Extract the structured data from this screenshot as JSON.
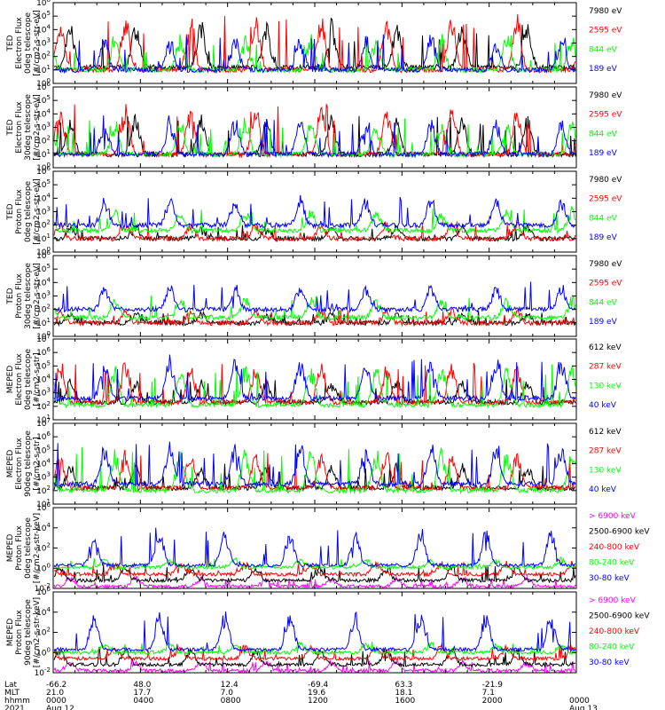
{
  "figure": {
    "colors": {
      "black": "#000000",
      "blue": "#0000ff",
      "green": "#00ff00",
      "red": "#ff0000",
      "magenta": "#ff00ff"
    }
  },
  "chart_data": [
    {
      "type": "line",
      "ylabel": [
        "TED",
        "Electron Flux",
        "0deg telescope",
        "[#/cm2-s-str-eV]"
      ],
      "ytick_labels": [
        "10^0",
        "10^1",
        "10^2",
        "10^3",
        "10^4",
        "10^5",
        "10^6"
      ],
      "ylim": [
        1,
        1000000
      ],
      "series": [
        {
          "name": "7980 eV",
          "color": "#000000",
          "baseline_exp": 1.2,
          "peak_exp": 4.7
        },
        {
          "name": "2595 eV",
          "color": "#ff0000",
          "baseline_exp": 1.0,
          "peak_exp": 5.2
        },
        {
          "name": "844 eV",
          "color": "#00ff00",
          "baseline_exp": 1.0,
          "peak_exp": 3.7
        },
        {
          "name": "189 eV",
          "color": "#0000ff",
          "baseline_exp": 1.0,
          "peak_exp": 3.6
        }
      ]
    },
    {
      "type": "line",
      "ylabel": [
        "TED",
        "Electron Flux",
        "30deg telescope",
        "[#/cm2-s-str-eV]"
      ],
      "ytick_labels": [
        "10^0",
        "10^1",
        "10^2",
        "10^3",
        "10^4",
        "10^5",
        "10^6"
      ],
      "ylim": [
        1,
        1000000
      ],
      "series": [
        {
          "name": "7980 eV",
          "color": "#000000",
          "baseline_exp": 1.0,
          "peak_exp": 3.9
        },
        {
          "name": "2595 eV",
          "color": "#ff0000",
          "baseline_exp": 1.0,
          "peak_exp": 4.9
        },
        {
          "name": "844 eV",
          "color": "#00ff00",
          "baseline_exp": 1.0,
          "peak_exp": 3.7
        },
        {
          "name": "189 eV",
          "color": "#0000ff",
          "baseline_exp": 1.0,
          "peak_exp": 3.8
        }
      ]
    },
    {
      "type": "line",
      "ylabel": [
        "TED",
        "Proton Flux",
        "0deg telescope",
        "[#/cm2-s-str-eV]"
      ],
      "ytick_labels": [
        "10^0",
        "10^1",
        "10^2",
        "10^3",
        "10^4",
        "10^5",
        "10^6"
      ],
      "ylim": [
        1,
        1000000
      ],
      "series": [
        {
          "name": "7980 eV",
          "color": "#000000",
          "baseline_exp": 1.0,
          "peak_exp": 2.0
        },
        {
          "name": "2595 eV",
          "color": "#ff0000",
          "baseline_exp": 1.0,
          "peak_exp": 2.2
        },
        {
          "name": "844 eV",
          "color": "#00ff00",
          "baseline_exp": 1.6,
          "peak_exp": 3.2
        },
        {
          "name": "189 eV",
          "color": "#0000ff",
          "baseline_exp": 2.0,
          "peak_exp": 4.1
        }
      ]
    },
    {
      "type": "line",
      "ylabel": [
        "TED",
        "Proton Flux",
        "30deg telescope",
        "[#/cm2-s-str-eV]"
      ],
      "ytick_labels": [
        "10^0",
        "10^1",
        "10^2",
        "10^3",
        "10^4",
        "10^5",
        "10^6"
      ],
      "ylim": [
        1,
        1000000
      ],
      "series": [
        {
          "name": "7980 eV",
          "color": "#000000",
          "baseline_exp": 1.0,
          "peak_exp": 1.8
        },
        {
          "name": "2595 eV",
          "color": "#ff0000",
          "baseline_exp": 1.0,
          "peak_exp": 2.0
        },
        {
          "name": "844 eV",
          "color": "#00ff00",
          "baseline_exp": 1.4,
          "peak_exp": 3.0
        },
        {
          "name": "189 eV",
          "color": "#0000ff",
          "baseline_exp": 2.0,
          "peak_exp": 4.0
        }
      ]
    },
    {
      "type": "line",
      "ylabel": [
        "MEPED",
        "Electron Flux",
        "0deg telescope",
        "[#/cm2-s-str]"
      ],
      "ytick_labels": [
        "10^1",
        "10^2",
        "10^3",
        "10^4",
        "10^5",
        "10^6",
        "10^7"
      ],
      "ylim": [
        10,
        10000000
      ],
      "series": [
        {
          "name": "612 keV",
          "color": "#000000",
          "baseline_exp": 2.3,
          "peak_exp": 4.0
        },
        {
          "name": "287 keV",
          "color": "#ff0000",
          "baseline_exp": 2.3,
          "peak_exp": 5.3
        },
        {
          "name": "130 keV",
          "color": "#00ff00",
          "baseline_exp": 2.1,
          "peak_exp": 5.2
        },
        {
          "name": "40 keV",
          "color": "#0000ff",
          "baseline_exp": 2.6,
          "peak_exp": 5.8
        }
      ]
    },
    {
      "type": "line",
      "ylabel": [
        "MEPED",
        "Electron Flux",
        "90deg telescope",
        "[#/cm2-s-str]"
      ],
      "ytick_labels": [
        "10^1",
        "10^2",
        "10^3",
        "10^4",
        "10^5",
        "10^6",
        "10^7"
      ],
      "ylim": [
        10,
        10000000
      ],
      "series": [
        {
          "name": "612 keV",
          "color": "#000000",
          "baseline_exp": 2.2,
          "peak_exp": 4.0
        },
        {
          "name": "287 keV",
          "color": "#ff0000",
          "baseline_exp": 2.2,
          "peak_exp": 5.0
        },
        {
          "name": "130 keV",
          "color": "#00ff00",
          "baseline_exp": 2.0,
          "peak_exp": 5.2
        },
        {
          "name": "40 keV",
          "color": "#0000ff",
          "baseline_exp": 2.5,
          "peak_exp": 5.6
        }
      ]
    },
    {
      "type": "line",
      "ylabel": [
        "MEPED",
        "Proton Flux",
        "0deg telescope",
        "[#/cm2-s-str-keV]"
      ],
      "ytick_labels": [
        "10^-2",
        "10^0",
        "10^2",
        "10^4",
        "10^6"
      ],
      "ylim": [
        0.01,
        1000000
      ],
      "series": [
        {
          "name": "> 6900 keV",
          "color": "#ff00ff",
          "baseline_exp": -1.8,
          "peak_exp": -0.8
        },
        {
          "name": "2500-6900 keV",
          "color": "#000000",
          "baseline_exp": -1.2,
          "peak_exp": 0.3
        },
        {
          "name": "240-800 keV",
          "color": "#ff0000",
          "baseline_exp": -0.6,
          "peak_exp": 0.6
        },
        {
          "name": "80-240 keV",
          "color": "#00ff00",
          "baseline_exp": 0.1,
          "peak_exp": 1.0
        },
        {
          "name": "30-80 keV",
          "color": "#0000ff",
          "baseline_exp": 0.3,
          "peak_exp": 4.0
        }
      ]
    },
    {
      "type": "line",
      "ylabel": [
        "MEPED",
        "Proton Flux",
        "90deg telescope",
        "[#/cm2-s-str-keV]"
      ],
      "ytick_labels": [
        "10^-2",
        "10^0",
        "10^2",
        "10^4",
        "10^6"
      ],
      "ylim": [
        0.01,
        1000000
      ],
      "series": [
        {
          "name": "> 6900 keV",
          "color": "#ff00ff",
          "baseline_exp": -1.8,
          "peak_exp": -0.8
        },
        {
          "name": "2500-6900 keV",
          "color": "#000000",
          "baseline_exp": -1.2,
          "peak_exp": 0.5
        },
        {
          "name": "240-800 keV",
          "color": "#ff0000",
          "baseline_exp": -0.6,
          "peak_exp": 0.8
        },
        {
          "name": "80-240 keV",
          "color": "#00ff00",
          "baseline_exp": 0.0,
          "peak_exp": 1.0
        },
        {
          "name": "30-80 keV",
          "color": "#0000ff",
          "baseline_exp": 0.3,
          "peak_exp": 4.1
        }
      ]
    }
  ],
  "x_axis": {
    "row_labels": [
      "Lat",
      "MLT",
      "hhmm",
      "2021"
    ],
    "ticks": [
      {
        "lat": "-66.2",
        "mlt": "21.0",
        "hhmm": "0000",
        "date": "Aug 12"
      },
      {
        "lat": "48.0",
        "mlt": "17.7",
        "hhmm": "0400",
        "date": ""
      },
      {
        "lat": "12.4",
        "mlt": "7.0",
        "hhmm": "0800",
        "date": ""
      },
      {
        "lat": "-69.4",
        "mlt": "19.6",
        "hhmm": "1200",
        "date": ""
      },
      {
        "lat": "63.3",
        "mlt": "18.1",
        "hhmm": "1600",
        "date": ""
      },
      {
        "lat": "-21.9",
        "mlt": "7.1",
        "hhmm": "2000",
        "date": ""
      },
      {
        "lat": "",
        "mlt": "",
        "hhmm": "0000",
        "date": "Aug 13"
      }
    ]
  }
}
